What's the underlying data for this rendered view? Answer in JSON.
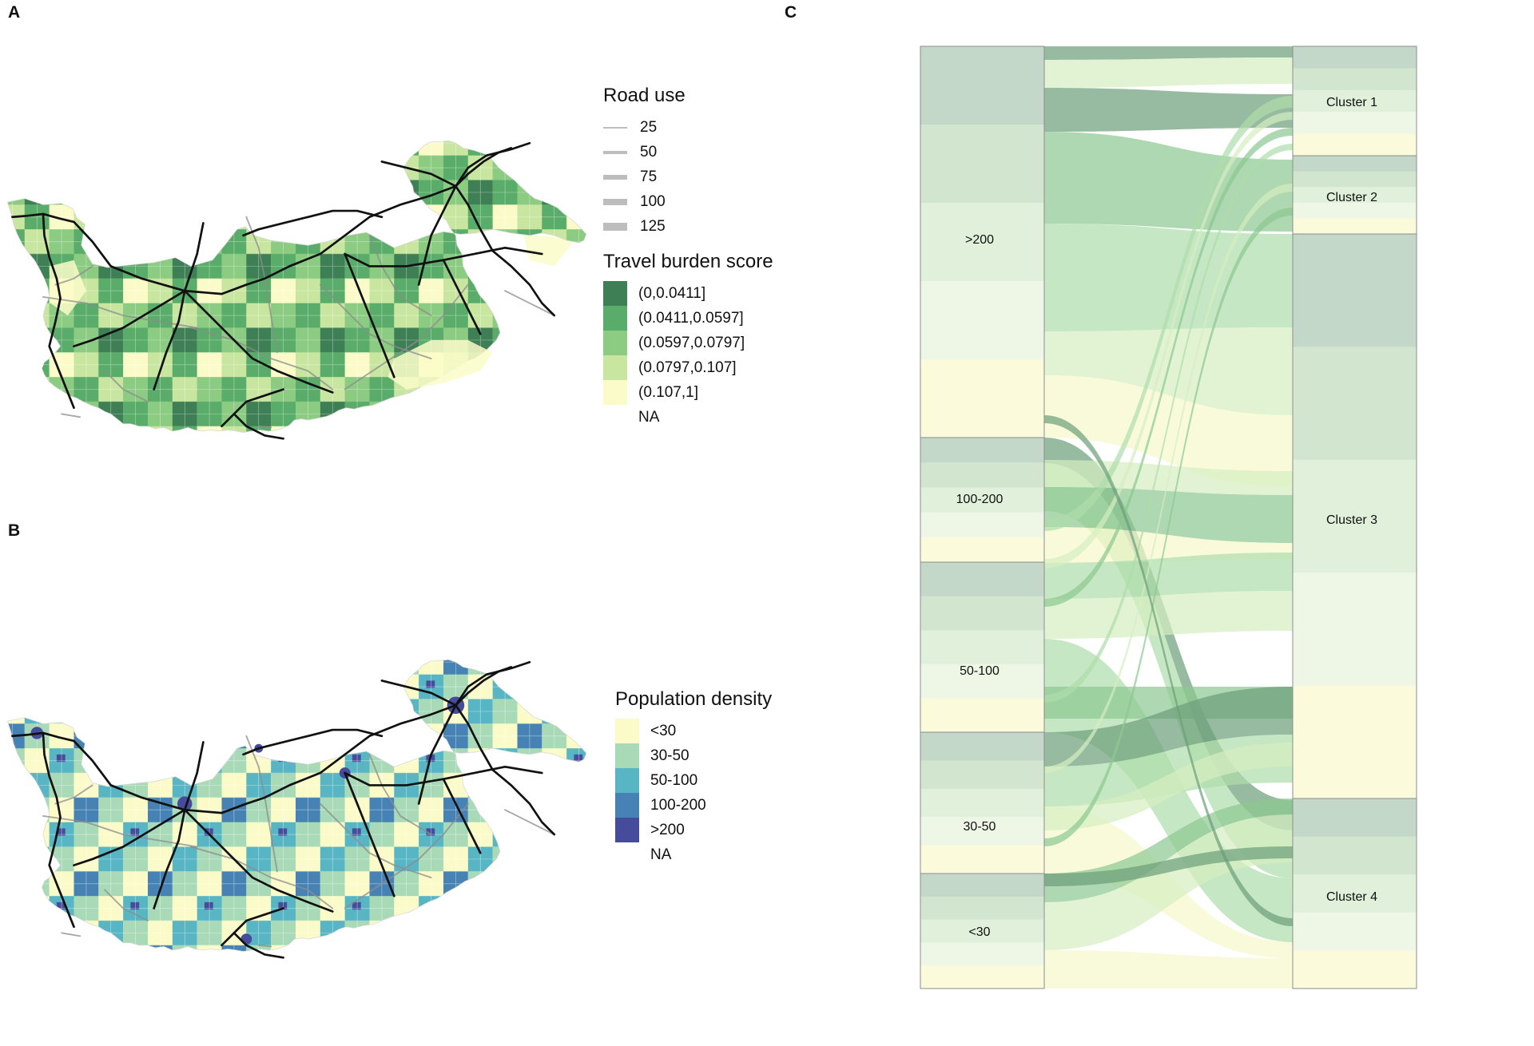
{
  "panels": {
    "a": "A",
    "b": "B",
    "c": "C"
  },
  "road_legend": {
    "title": "Road use",
    "items": [
      {
        "label": "25",
        "weight": 25
      },
      {
        "label": "50",
        "weight": 50
      },
      {
        "label": "75",
        "weight": 75
      },
      {
        "label": "100",
        "weight": 100
      },
      {
        "label": "125",
        "weight": 125
      }
    ]
  },
  "burden_legend": {
    "title": "Travel burden score",
    "items": [
      {
        "label": "(0,0.0411]",
        "color": "#3f7f56"
      },
      {
        "label": "(0.0411,0.0597]",
        "color": "#5aac6a"
      },
      {
        "label": "(0.0597,0.0797]",
        "color": "#8ccb82"
      },
      {
        "label": "(0.0797,0.107]",
        "color": "#c8e6a0"
      },
      {
        "label": "(0.107,1]",
        "color": "#fbfbc9"
      }
    ],
    "na_label": "NA"
  },
  "density_legend": {
    "title": "Population density",
    "items": [
      {
        "label": "<30",
        "color": "#fbfbc9"
      },
      {
        "label": "30-50",
        "color": "#a8dab8"
      },
      {
        "label": "50-100",
        "color": "#58b6c4"
      },
      {
        "label": "100-200",
        "color": "#4682b4"
      },
      {
        "label": ">200",
        "color": "#474b9b"
      }
    ],
    "na_label": "NA"
  },
  "alluvial": {
    "left_axis": [
      ">200",
      "100-200",
      "50-100",
      "30-50",
      "<30"
    ],
    "right_axis": [
      "Cluster 1",
      "Cluster 2",
      "Cluster 3",
      "Cluster 4"
    ],
    "sub_fills": [
      "#c3d8c8",
      "#d2e6cf",
      "#e0f0db",
      "#eef7e6",
      "#fbfbdc"
    ],
    "flow_fills": [
      "#6b9e79",
      "#8cc790",
      "#aedda9",
      "#d6eec0",
      "#f6f8ca"
    ]
  }
}
